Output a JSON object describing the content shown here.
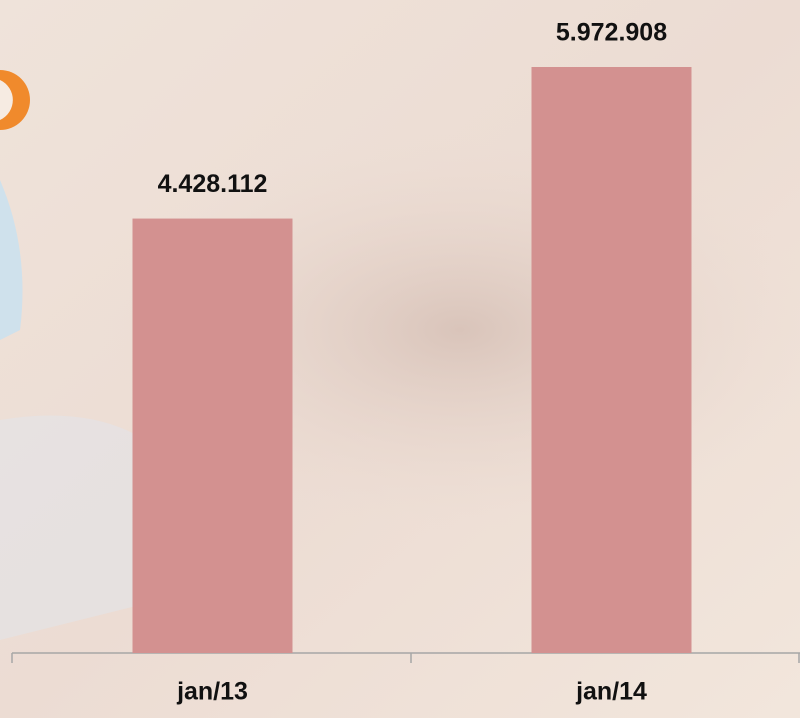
{
  "chart_data": {
    "type": "bar",
    "categories": [
      "jan/13",
      "jan/14"
    ],
    "values": [
      4428112,
      5972908
    ],
    "value_labels": [
      "4.428.112",
      "5.972.908"
    ],
    "color": "#d39190"
  }
}
